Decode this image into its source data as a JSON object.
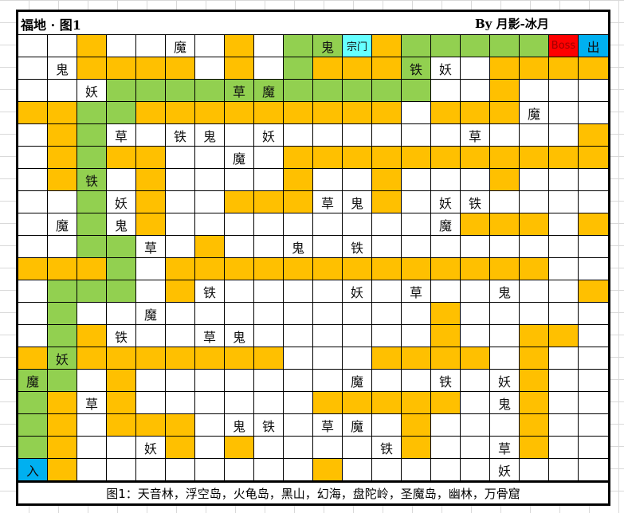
{
  "header": {
    "title": "福地 · 图1",
    "author": "By 月影-冰月"
  },
  "colors": {
    "W": "#ffffff",
    "O": "#ffc000",
    "G": "#92d050",
    "C": "#66ffff",
    "R": "#ff0000",
    "B": "#00b0f0"
  },
  "grid": {
    "rows": [
      "WWOWWWWOWGGCOGGGGGRB",
      "WWOOOOWOWGOOOGWWOOOO",
      "WWWGGGGGGGGGGGWWOWWW",
      "OOGGOOOOOOOOOWOOOWWW",
      "WOGWWWWWWWWWWWWWWWWO",
      "WOGOOWWWWOOOOOOOOOOO",
      "WOGWOWWWWOWWOWWWOWWW",
      "WWGWOWWOOOWWOWWWWWWW",
      "WWGWOWWWWWWWWWWOOOWO",
      "WWGGWWOWWWWWWWWWWWWW",
      "OOOGWOOOOOOOOOOOOOWW",
      "WGGGWOWWWWWWWWWWWWWO",
      "WGWWWWWWWWWWWWOWWWWW",
      "WGOWWWWWWWWWWWOWWOOW",
      "OGOOOOOOOWWWOOOOWOWW",
      "GGWOWWWWWWWWWWWWWOWW",
      "GOWOWWWWWWOOOOOWWOWW",
      "GOWOOOWWWWWWWOWWWOWW",
      "GOWWWOWOWWWWWOWWWOWW",
      "BOWWWWWWWWOWWWWWWWWW"
    ],
    "labels": [
      [
        0,
        5,
        "魔"
      ],
      [
        0,
        10,
        "鬼"
      ],
      [
        0,
        11,
        "宗门"
      ],
      [
        0,
        18,
        "Boss"
      ],
      [
        0,
        19,
        "出"
      ],
      [
        1,
        1,
        "鬼"
      ],
      [
        1,
        13,
        "铁"
      ],
      [
        1,
        14,
        "妖"
      ],
      [
        2,
        2,
        "妖"
      ],
      [
        2,
        7,
        "草"
      ],
      [
        2,
        8,
        "魔"
      ],
      [
        3,
        17,
        "魔"
      ],
      [
        4,
        3,
        "草"
      ],
      [
        4,
        5,
        "铁"
      ],
      [
        4,
        6,
        "鬼"
      ],
      [
        4,
        8,
        "妖"
      ],
      [
        4,
        15,
        "草"
      ],
      [
        5,
        7,
        "魔"
      ],
      [
        6,
        2,
        "铁"
      ],
      [
        7,
        3,
        "妖"
      ],
      [
        7,
        10,
        "草"
      ],
      [
        7,
        11,
        "鬼"
      ],
      [
        7,
        14,
        "妖"
      ],
      [
        7,
        15,
        "铁"
      ],
      [
        8,
        1,
        "魔"
      ],
      [
        8,
        3,
        "鬼"
      ],
      [
        8,
        14,
        "魔"
      ],
      [
        9,
        4,
        "草"
      ],
      [
        9,
        9,
        "鬼"
      ],
      [
        9,
        11,
        "铁"
      ],
      [
        11,
        6,
        "铁"
      ],
      [
        11,
        11,
        "妖"
      ],
      [
        11,
        13,
        "草"
      ],
      [
        11,
        16,
        "鬼"
      ],
      [
        12,
        4,
        "魔"
      ],
      [
        13,
        3,
        "铁"
      ],
      [
        13,
        6,
        "草"
      ],
      [
        13,
        7,
        "鬼"
      ],
      [
        14,
        1,
        "妖"
      ],
      [
        15,
        0,
        "魔"
      ],
      [
        15,
        11,
        "魔"
      ],
      [
        15,
        14,
        "铁"
      ],
      [
        15,
        16,
        "妖"
      ],
      [
        16,
        2,
        "草"
      ],
      [
        16,
        16,
        "鬼"
      ],
      [
        17,
        7,
        "鬼"
      ],
      [
        17,
        8,
        "铁"
      ],
      [
        17,
        10,
        "草"
      ],
      [
        17,
        11,
        "魔"
      ],
      [
        18,
        4,
        "妖"
      ],
      [
        18,
        12,
        "铁"
      ],
      [
        18,
        16,
        "草"
      ],
      [
        19,
        0,
        "入"
      ],
      [
        19,
        16,
        "妖"
      ]
    ]
  },
  "caption": "图1：天音林，浮空岛，火龟岛，黑山，幻海，盘陀岭，圣魔岛，幽林，万骨窟"
}
